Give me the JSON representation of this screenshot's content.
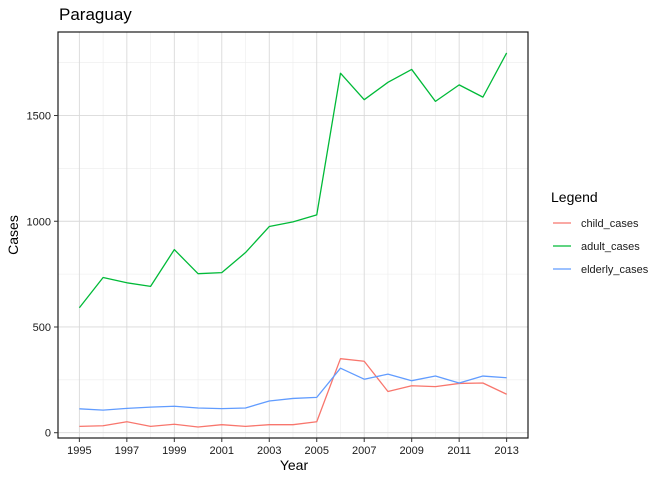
{
  "chart_data": {
    "type": "line",
    "title": "Paraguay",
    "xlabel": "Year",
    "ylabel": "Cases",
    "x": [
      1995,
      1996,
      1997,
      1998,
      1999,
      2000,
      2001,
      2002,
      2003,
      2004,
      2005,
      2006,
      2007,
      2008,
      2009,
      2010,
      2011,
      2012,
      2013
    ],
    "xlim": [
      1994.1,
      2013.9
    ],
    "ylim": [
      -25,
      1895
    ],
    "x_ticks": [
      "1995",
      "1997",
      "1999",
      "2001",
      "2003",
      "2005",
      "2007",
      "2009",
      "2011",
      "2013"
    ],
    "y_ticks": [
      "0",
      "500",
      "1000",
      "1500"
    ],
    "grid": true,
    "legend": {
      "title": "Legend",
      "position": "right"
    },
    "series": [
      {
        "name": "child_cases",
        "color": "#F8766D",
        "values": [
          30,
          33,
          52,
          30,
          40,
          27,
          38,
          30,
          38,
          38,
          52,
          350,
          338,
          195,
          222,
          218,
          233,
          235,
          182
        ]
      },
      {
        "name": "adult_cases",
        "color": "#00BA38",
        "values": [
          591,
          734,
          709,
          692,
          866,
          752,
          757,
          852,
          975,
          997,
          1030,
          1700,
          1575,
          1657,
          1718,
          1567,
          1645,
          1587,
          1796
        ]
      },
      {
        "name": "elderly_cases",
        "color": "#619CFF",
        "values": [
          113,
          107,
          115,
          121,
          125,
          117,
          114,
          117,
          150,
          162,
          167,
          305,
          253,
          277,
          246,
          268,
          235,
          268,
          260
        ]
      }
    ]
  }
}
